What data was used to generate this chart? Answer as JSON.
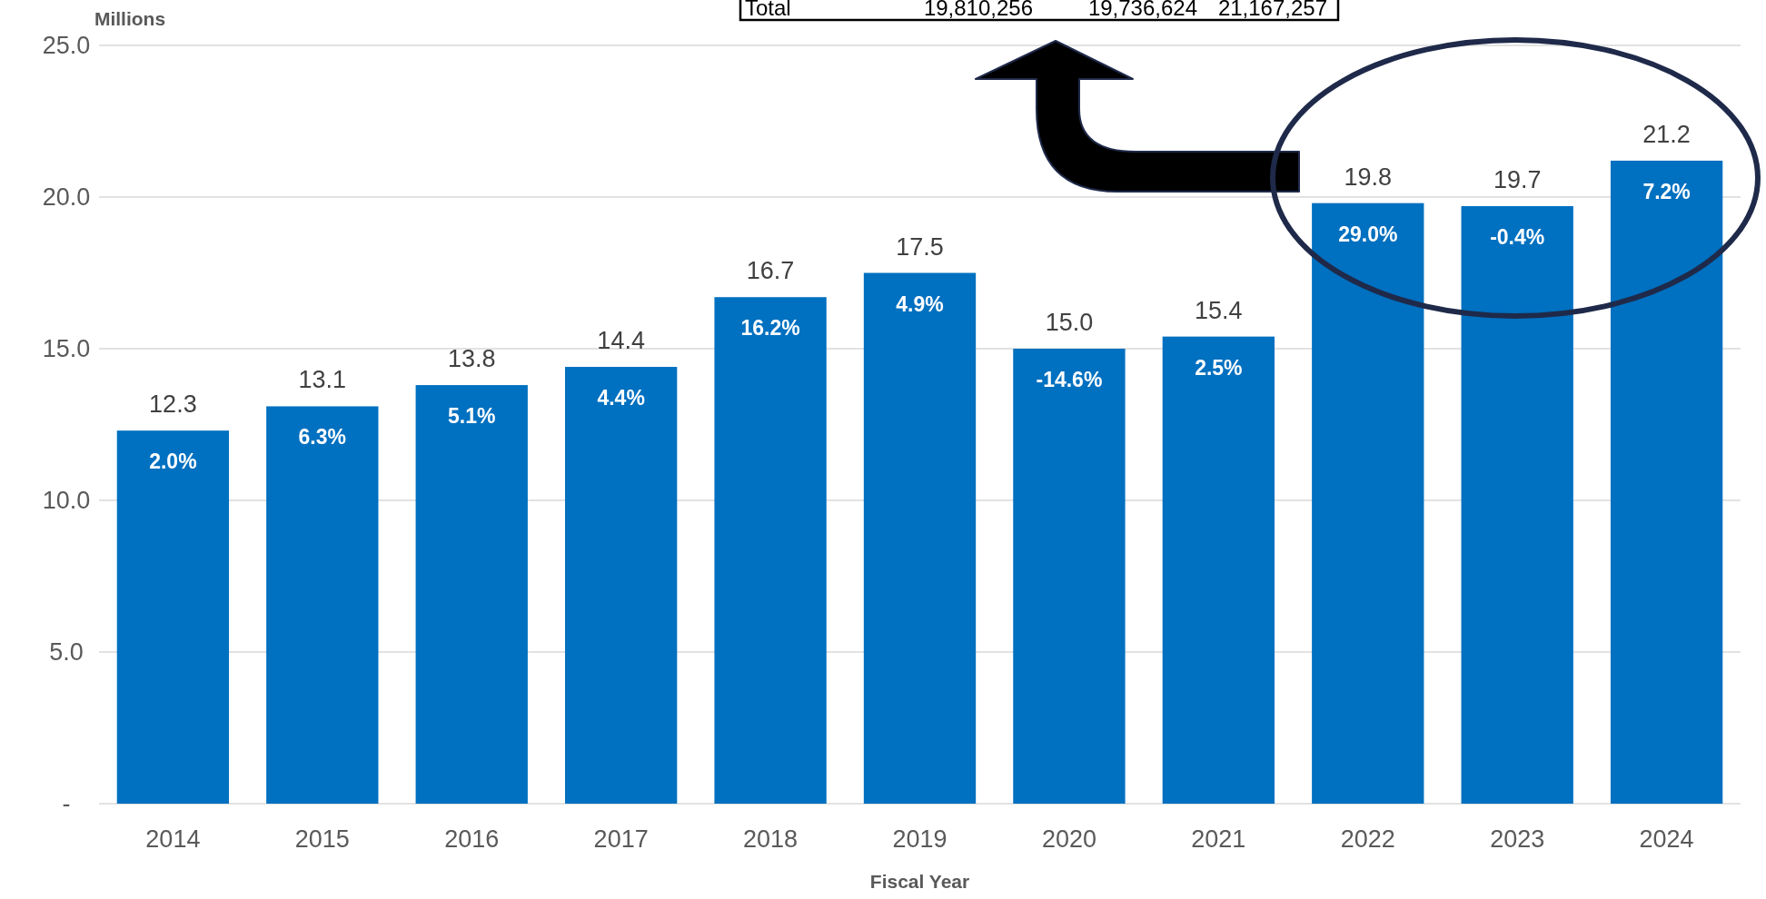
{
  "chart_data": {
    "type": "bar",
    "xlabel": "Fiscal Year",
    "ylabel": "Millions",
    "categories": [
      "2014",
      "2015",
      "2016",
      "2017",
      "2018",
      "2019",
      "2020",
      "2021",
      "2022",
      "2023",
      "2024"
    ],
    "values": [
      12.3,
      13.1,
      13.8,
      14.4,
      16.7,
      17.5,
      15.0,
      15.4,
      19.8,
      19.7,
      21.2
    ],
    "color": "#0070c0",
    "value_labels": [
      "12.3",
      "13.1",
      "13.8",
      "14.4",
      "16.7",
      "17.5",
      "15.0",
      "15.4",
      "19.8",
      "19.7",
      "21.2"
    ],
    "ylim": [
      0,
      25
    ],
    "yticks": [
      {
        "value": 0,
        "label": "-"
      },
      {
        "value": 5,
        "label": "5.0"
      },
      {
        "value": 10,
        "label": "10.0"
      },
      {
        "value": 15,
        "label": "15.0"
      },
      {
        "value": 20,
        "label": "20.0"
      },
      {
        "value": 25,
        "label": "25.0"
      }
    ],
    "grid": "y",
    "annotations": [
      {
        "text": "2.0%",
        "x": "2014",
        "y": 12.3
      },
      {
        "text": "6.3%",
        "x": "2015",
        "y": 13.1
      },
      {
        "text": "5.1%",
        "x": "2016",
        "y": 13.8
      },
      {
        "text": "4.4%",
        "x": "2017",
        "y": 14.4
      },
      {
        "text": "16.2%",
        "x": "2018",
        "y": 16.7
      },
      {
        "text": "4.9%",
        "x": "2019",
        "y": 17.5
      },
      {
        "text": "-14.6%",
        "x": "2020",
        "y": 15.0
      },
      {
        "text": "2.5%",
        "x": "2021",
        "y": 15.4
      },
      {
        "text": "29.0%",
        "x": "2022",
        "y": 19.8
      },
      {
        "text": "-0.4%",
        "x": "2023",
        "y": 19.7
      },
      {
        "text": "7.2%",
        "x": "2024",
        "y": 21.2
      },
      "Total",
      "19,810,256",
      "19,736,624",
      "21,167,257"
    ]
  }
}
